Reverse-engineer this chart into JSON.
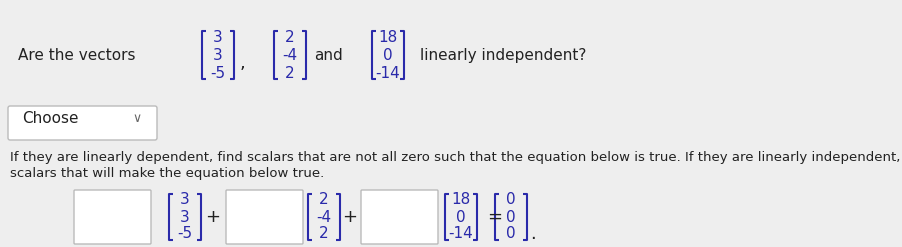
{
  "bg_color": "#eeeeee",
  "text_color": "#2a2aaa",
  "body_color": "#222222",
  "vec1": [
    "3",
    "3",
    "-5"
  ],
  "vec2": [
    "2",
    "-4",
    "2"
  ],
  "vec3": [
    "18",
    "0",
    "-14"
  ],
  "vec0": [
    "0",
    "0",
    "0"
  ],
  "top_line": "Are the vectors",
  "comma_text": ",",
  "and_text": "and",
  "question_text": "linearly independent?",
  "choose_text": "Choose",
  "paragraph_line1": "If they are linearly dependent, find scalars that are not all zero such that the equation below is true. If they are linearly independent, find the only",
  "paragraph_line2": "scalars that will make the equation below true.",
  "plus_text": "+",
  "equals_text": "=",
  "dot_text": ".",
  "fig_width": 9.02,
  "fig_height": 2.47,
  "dpi": 100
}
